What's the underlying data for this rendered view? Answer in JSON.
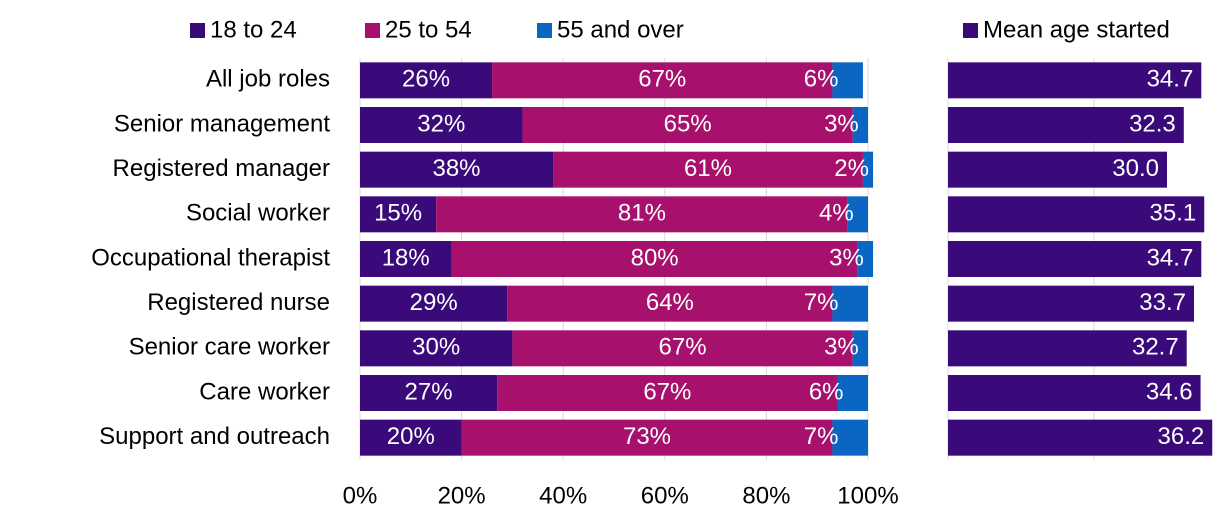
{
  "chart_data": [
    {
      "type": "stacked_bar",
      "categories": [
        "All job roles",
        "Senior management",
        "Registered manager",
        "Social worker",
        "Occupational therapist",
        "Registered nurse",
        "Senior care worker",
        "Care worker",
        "Support and outreach"
      ],
      "series": [
        {
          "name": "18 to 24",
          "color": "#3a0a7a",
          "values": [
            26,
            32,
            38,
            15,
            18,
            29,
            30,
            27,
            20
          ],
          "value_labels": [
            "26%",
            "32%",
            "38%",
            "15%",
            "18%",
            "29%",
            "30%",
            "27%",
            "20%"
          ]
        },
        {
          "name": "25 to 54",
          "color": "#a7106c",
          "values": [
            67,
            65,
            61,
            81,
            80,
            64,
            67,
            67,
            73
          ],
          "value_labels": [
            "67%",
            "65%",
            "61%",
            "81%",
            "80%",
            "64%",
            "67%",
            "67%",
            "73%"
          ]
        },
        {
          "name": "55 and over",
          "color": "#0a66c2",
          "values": [
            6,
            3,
            2,
            4,
            3,
            7,
            3,
            6,
            7
          ],
          "value_labels": [
            "6%",
            "3%",
            "2%",
            "4%",
            "3%",
            "7%",
            "3%",
            "6%",
            "7%"
          ]
        }
      ],
      "xlim": [
        0,
        100
      ],
      "xticks": [
        {
          "value": 0,
          "label": "0%"
        },
        {
          "value": 20,
          "label": "20%"
        },
        {
          "value": 40,
          "label": "40%"
        },
        {
          "value": 60,
          "label": "60%"
        },
        {
          "value": 80,
          "label": "80%"
        },
        {
          "value": 100,
          "label": "100%"
        }
      ],
      "grid": true
    },
    {
      "type": "bar",
      "series": [
        {
          "name": "Mean age started",
          "color": "#3a0a7a",
          "values": [
            34.7,
            32.3,
            30,
            35.1,
            34.7,
            33.7,
            32.7,
            34.6,
            36.2
          ],
          "value_labels": [
            "34.7",
            "32.3",
            "30.0",
            "35.1",
            "34.7",
            "33.7",
            "32.7",
            "34.6",
            "36.2"
          ]
        }
      ],
      "xlim": [
        0,
        40
      ],
      "xticks": [
        0,
        20,
        40
      ],
      "grid": true
    }
  ]
}
